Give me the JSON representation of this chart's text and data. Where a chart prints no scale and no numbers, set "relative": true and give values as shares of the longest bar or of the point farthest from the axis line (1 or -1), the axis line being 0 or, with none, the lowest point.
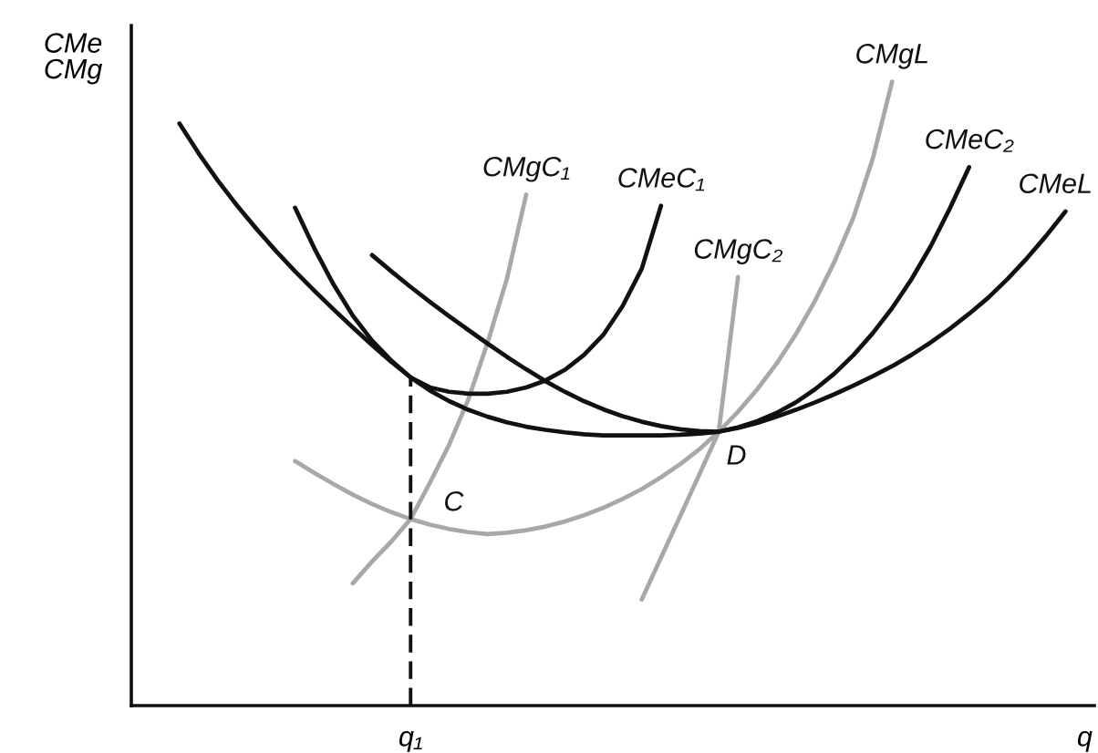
{
  "chart_data": {
    "type": "line",
    "relative": true,
    "ylabel": "CMe\nCMg",
    "categories": [
      null,
      null,
      null,
      null,
      null,
      null,
      null,
      null,
      null,
      null,
      null,
      null,
      null,
      null,
      "q₁",
      null,
      null,
      null,
      null,
      null,
      null,
      null,
      null,
      null,
      null,
      null,
      null,
      null,
      null,
      null,
      null,
      null,
      null,
      null,
      null,
      null,
      null,
      null,
      null,
      null,
      null,
      null,
      null,
      null,
      null,
      null,
      null,
      null,
      null,
      "q"
    ],
    "series": [
      {
        "name": "CMgC₁",
        "color": "#a8a8a8",
        "values": [
          null,
          null,
          null,
          null,
          null,
          null,
          null,
          null,
          null,
          null,
          null,
          0.196,
          0.231,
          0.263,
          0.299,
          0.357,
          0.418,
          0.491,
          0.582,
          0.684,
          0.819,
          null,
          null,
          null,
          null,
          null,
          null,
          null,
          null,
          null,
          null,
          null,
          null,
          null,
          null,
          null,
          null,
          null,
          null,
          null,
          null,
          null,
          null,
          null,
          null,
          null,
          null,
          null,
          null,
          null
        ]
      },
      {
        "name": "CMeC₁",
        "color": "#111111",
        "values": [
          null,
          null,
          null,
          null,
          null,
          null,
          null,
          null,
          0.798,
          0.733,
          0.675,
          0.625,
          0.585,
          0.553,
          0.526,
          0.51,
          0.503,
          0.5,
          0.5,
          0.503,
          0.51,
          0.521,
          0.538,
          0.562,
          0.594,
          0.64,
          0.7,
          0.801,
          null,
          null,
          null,
          null,
          null,
          null,
          null,
          null,
          null,
          null,
          null,
          null,
          null,
          null,
          null,
          null,
          null,
          null,
          null,
          null,
          null,
          null
        ]
      },
      {
        "name": "CMgC₂",
        "color": "#a8a8a8",
        "values": [
          null,
          null,
          null,
          null,
          null,
          null,
          null,
          null,
          null,
          null,
          null,
          null,
          null,
          null,
          null,
          null,
          null,
          null,
          null,
          null,
          null,
          null,
          null,
          null,
          null,
          null,
          0.17,
          0.237,
          0.304,
          0.371,
          0.439,
          0.687,
          null,
          null,
          null,
          null,
          null,
          null,
          null,
          null,
          null,
          null,
          null,
          null,
          null,
          null,
          null,
          null,
          null,
          null
        ]
      },
      {
        "name": "CMgL",
        "color": "#a8a8a8",
        "values": [
          null,
          null,
          null,
          null,
          null,
          null,
          null,
          null,
          0.392,
          0.373,
          0.355,
          0.338,
          0.323,
          0.31,
          0.299,
          0.29,
          0.283,
          0.278,
          0.275,
          0.277,
          0.281,
          0.287,
          0.295,
          0.305,
          0.317,
          0.331,
          0.347,
          0.366,
          0.387,
          0.411,
          0.439,
          0.471,
          0.507,
          0.548,
          0.595,
          0.649,
          0.711,
          0.783,
          0.877,
          1.0,
          null,
          null,
          null,
          null,
          null,
          null,
          null,
          null,
          null,
          null
        ]
      },
      {
        "name": "CMeC₂",
        "color": "#111111",
        "values": [
          null,
          null,
          null,
          null,
          null,
          null,
          null,
          null,
          null,
          null,
          null,
          null,
          0.722,
          0.696,
          0.671,
          0.647,
          0.624,
          0.602,
          0.58,
          0.559,
          0.539,
          0.52,
          0.503,
          0.488,
          0.475,
          0.464,
          0.455,
          0.448,
          0.443,
          0.44,
          0.439,
          0.446,
          0.456,
          0.469,
          0.486,
          0.507,
          0.532,
          0.562,
          0.597,
          0.637,
          0.683,
          0.736,
          0.797,
          0.863,
          null,
          null,
          null,
          null,
          null,
          null
        ]
      },
      {
        "name": "CMeL",
        "color": "#111111",
        "values": [
          null,
          null,
          0.933,
          0.885,
          0.841,
          0.801,
          0.764,
          0.729,
          0.696,
          0.665,
          0.635,
          0.606,
          0.578,
          0.551,
          0.526,
          0.505,
          0.488,
          0.474,
          0.463,
          0.454,
          0.447,
          0.442,
          0.438,
          0.435,
          0.433,
          0.433,
          0.433,
          0.433,
          0.434,
          0.436,
          0.439,
          0.445,
          0.453,
          0.463,
          0.474,
          0.486,
          0.499,
          0.513,
          0.528,
          0.544,
          0.562,
          0.582,
          0.604,
          0.628,
          0.654,
          0.684,
          0.717,
          0.753,
          0.792,
          null
        ]
      },
      {
        "color": "#111111",
        "line_style": "dashed",
        "x": [
          "q₁",
          "q₁"
        ],
        "values": [
          0,
          0.526
        ]
      }
    ],
    "annotations": [
      {
        "text": "C",
        "x": "q₁",
        "y": 0.299
      },
      {
        "text": "D",
        "y": 0.439
      }
    ]
  }
}
